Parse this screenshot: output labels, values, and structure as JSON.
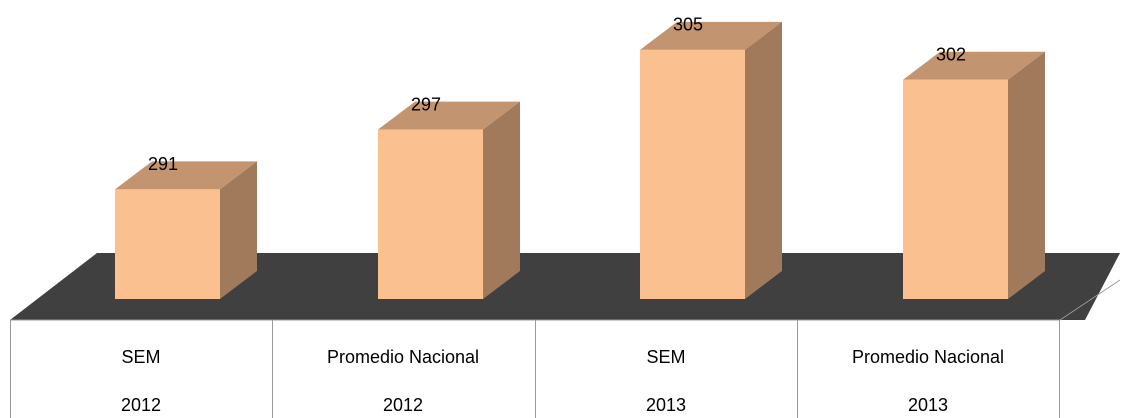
{
  "chart_data": {
    "type": "bar3d",
    "categories": [
      "SEM",
      "Promedio Nacional",
      "SEM",
      "Promedio Nacional"
    ],
    "years": [
      "2012",
      "2012",
      "2013",
      "2013"
    ],
    "values": [
      291,
      297,
      305,
      302
    ],
    "ylim": [
      280,
      310
    ],
    "color": "#fac090"
  }
}
